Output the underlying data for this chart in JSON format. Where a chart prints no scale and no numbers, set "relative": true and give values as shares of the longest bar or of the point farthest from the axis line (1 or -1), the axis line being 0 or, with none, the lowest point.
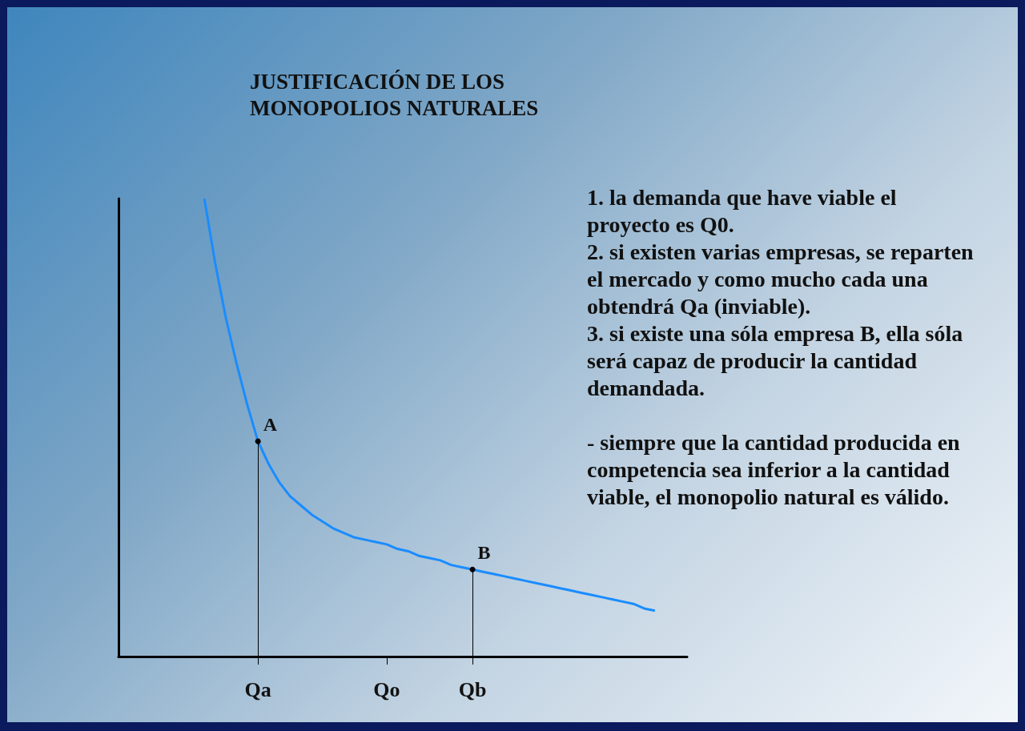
{
  "chart_data": {
    "type": "line",
    "relative": true,
    "title": "JUSTIFICACIÓN DE LOS\nMONOPOLIOS NATURALES",
    "categories": [
      null,
      null,
      null,
      null,
      null,
      null,
      null,
      null,
      null,
      null,
      null,
      null,
      null,
      "Qa",
      null,
      null,
      null,
      null,
      null,
      null,
      null,
      null,
      null,
      null,
      null,
      "Qo",
      null,
      null,
      null,
      null,
      null,
      null,
      null,
      "Qb",
      null,
      null,
      null,
      null,
      null,
      null,
      null,
      null,
      null,
      null,
      null,
      null,
      null,
      null,
      null,
      null,
      null,
      null,
      null,
      null
    ],
    "series": [
      {
        "color": "#1a8cff",
        "values": [
          null,
          null,
          null,
          null,
          null,
          null,
          null,
          null,
          1.0,
          0.86,
          0.74,
          0.64,
          0.55,
          0.47,
          0.42,
          0.38,
          0.35,
          0.33,
          0.31,
          0.295,
          0.28,
          0.27,
          0.26,
          0.255,
          0.25,
          0.245,
          0.235,
          0.23,
          0.22,
          0.215,
          0.21,
          0.2,
          0.195,
          0.19,
          0.185,
          0.18,
          0.175,
          0.17,
          0.165,
          0.16,
          0.155,
          0.15,
          0.145,
          0.14,
          0.135,
          0.13,
          0.125,
          0.12,
          0.115,
          0.105,
          0.1,
          null,
          null,
          null
        ]
      }
    ],
    "annotations": [
      {
        "text": "A",
        "x": "Qa",
        "y": 0.47
      },
      {
        "text": "B",
        "x": "Qb",
        "y": 0.19
      },
      "1. la demanda que have viable el proyecto es Q0.",
      "2. si existen varias empresas, se reparten el mercado y como mucho cada una obtendrá Qa (inviable).",
      "3. si existe una sóla empresa B, ella sóla será capaz de producir la cantidad demandada.",
      "- siempre que la cantidad producida en competencia sea inferior a la cantidad viable, el monopolio natural es válido."
    ],
    "marker": "none",
    "line_style": "solid"
  }
}
